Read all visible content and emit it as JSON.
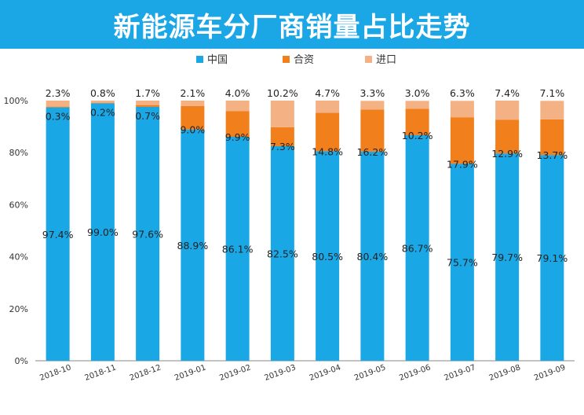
{
  "chart_data": {
    "type": "bar",
    "stacked": true,
    "title": "新能源车分厂商销量占比走势",
    "categories": [
      "2018-10",
      "2018-11",
      "2018-12",
      "2019-01",
      "2019-02",
      "2019-03",
      "2019-04",
      "2019-05",
      "2019-06",
      "2019-07",
      "2019-08",
      "2019-09"
    ],
    "series": [
      {
        "name": "中国",
        "color": "#19a7e6",
        "values": [
          97.4,
          99.0,
          97.6,
          88.9,
          86.1,
          82.5,
          80.5,
          80.4,
          86.7,
          75.7,
          79.7,
          79.1
        ],
        "labels": [
          "97.4%",
          "99.0%",
          "97.6%",
          "88.9%",
          "86.1%",
          "82.5%",
          "80.5%",
          "80.4%",
          "86.7%",
          "75.7%",
          "79.7%",
          "79.1%"
        ]
      },
      {
        "name": "合资",
        "color": "#f07f1c",
        "values": [
          0.3,
          0.2,
          0.7,
          9.0,
          9.9,
          7.3,
          14.8,
          16.2,
          10.2,
          17.9,
          12.9,
          13.7
        ],
        "labels": [
          "0.3%",
          "0.2%",
          "0.7%",
          "9.0%",
          "9.9%",
          "7.3%",
          "14.8%",
          "16.2%",
          "10.2%",
          "17.9%",
          "12.9%",
          "13.7%"
        ]
      },
      {
        "name": "进口",
        "color": "#f4b184",
        "values": [
          2.3,
          0.8,
          1.7,
          2.1,
          4.0,
          10.2,
          4.7,
          3.3,
          3.0,
          6.3,
          7.4,
          7.1
        ],
        "labels": [
          "2.3%",
          "0.8%",
          "1.7%",
          "2.1%",
          "4.0%",
          "10.2%",
          "4.7%",
          "3.3%",
          "3.0%",
          "6.3%",
          "7.4%",
          "7.1%"
        ]
      }
    ],
    "yticks": [
      "0%",
      "20%",
      "40%",
      "60%",
      "80%",
      "100%"
    ],
    "ylim": [
      0,
      100
    ],
    "legend_position": "top-center",
    "grid": false
  }
}
